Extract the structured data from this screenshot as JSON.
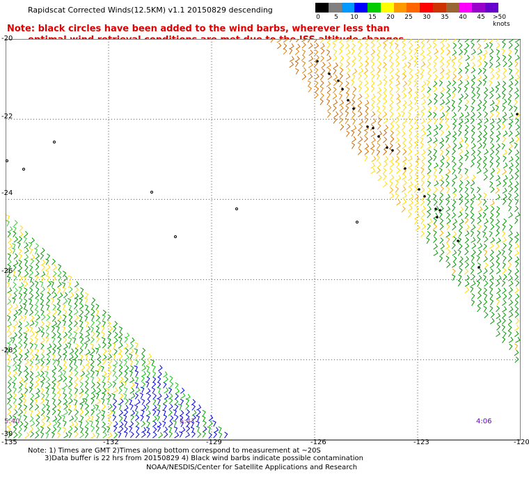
{
  "title": "Rapidscat Corrected Winds(12.5KM) v1.1 20150829 descending",
  "note": {
    "line1": "Note: black circles have been added to the wind barbs, wherever less than",
    "line2": "optimal wind retrieval conditions are met due to the ISS altitude changes."
  },
  "legend": {
    "colors": [
      "#000000",
      "#808080",
      "#0099ff",
      "#0000ff",
      "#00cc00",
      "#ffff00",
      "#ff9900",
      "#ff6600",
      "#ff0000",
      "#cc3300",
      "#996633",
      "#ff00ff",
      "#9900cc",
      "#6600cc"
    ],
    "tick_labels": [
      "0",
      "5",
      "10",
      "15",
      "20",
      "25",
      "30",
      "35",
      "40",
      "45",
      ">50 knots"
    ]
  },
  "axes": {
    "x_ticks": [
      "-135",
      "-132",
      "-129",
      "-126",
      "-123",
      "-120"
    ],
    "y_ticks": [
      "-20",
      "-22",
      "-24",
      "-26",
      "-28",
      "-30"
    ]
  },
  "times": {
    "left": "5:40",
    "middle": "5:41",
    "right": "4:06"
  },
  "footer": {
    "line1": "Note: 1) Times are GMT 2)Times along bottom correspond to measurement at ~20S",
    "line2": "3)Data buffer is 22 hrs from 20150829 4) Black wind barbs indicate possible contamination",
    "line3": "NOAA/NESDIS/Center for Satellite Applications and Research"
  }
}
